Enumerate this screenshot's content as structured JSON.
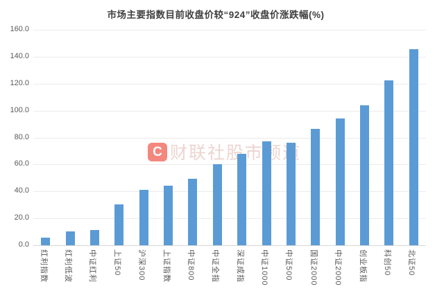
{
  "title": "市场主要指数目前收盘价较“924”收盘价涨跌幅(%)",
  "watermark": {
    "logo_letter": "C",
    "text": "财联社股市频道"
  },
  "colors": {
    "bar": "#5B9BD5",
    "grid": "#EBEBEB",
    "axis": "#D6D6D6",
    "tick_label": "#595959",
    "title": "#404040",
    "watermark_logo": "#EC3E2E"
  },
  "chart_data": {
    "type": "bar",
    "title": "市场主要指数目前收盘价较“924”收盘价涨跌幅(%)",
    "categories": [
      "红利指数",
      "红利低波",
      "中证红利",
      "上证50",
      "沪深300",
      "上证指数",
      "中证800",
      "中证全指",
      "深证成指",
      "中证1000",
      "中证500",
      "国证2000",
      "中证2000",
      "创业板指",
      "科创50",
      "北证50"
    ],
    "values": [
      5.7,
      10.3,
      11.3,
      30.3,
      41.2,
      44.0,
      49.4,
      60.2,
      67.9,
      77.2,
      76.1,
      86.4,
      94.1,
      103.9,
      122.5,
      145.5
    ],
    "xlabel": "",
    "ylabel": "",
    "ylim": [
      0,
      160
    ],
    "ytick_step": 20,
    "ytick_labels": [
      "0.0",
      "20.0",
      "40.0",
      "60.0",
      "80.0",
      "100.0",
      "120.0",
      "140.0",
      "160.0"
    ],
    "grid": true,
    "legend_position": "none",
    "bar_color": "#5B9BD5",
    "x_label_rotation_deg": 90
  }
}
